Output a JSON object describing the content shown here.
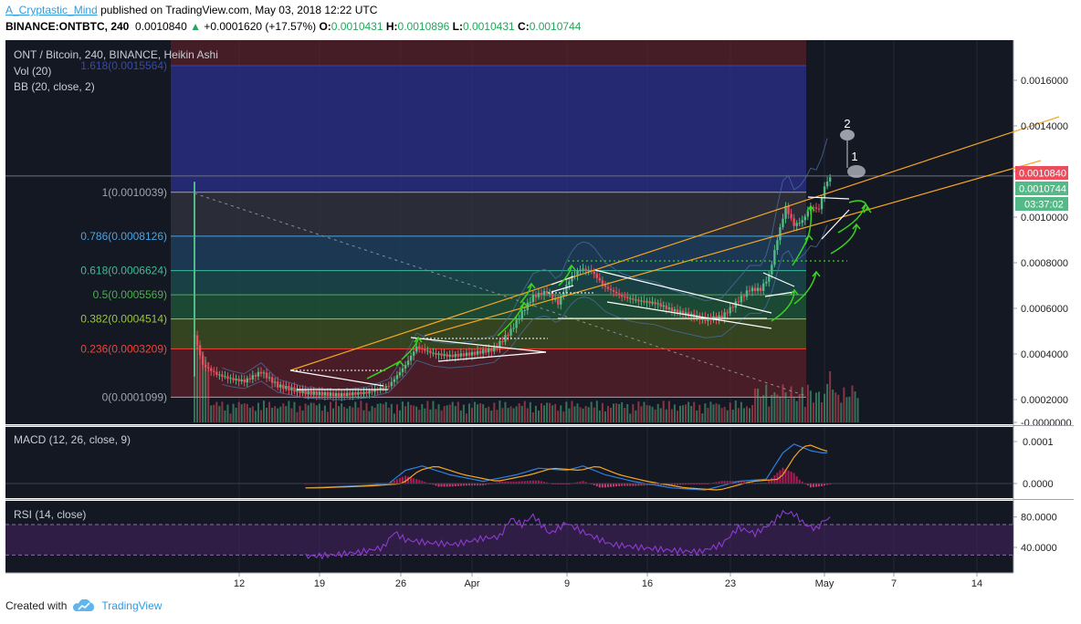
{
  "header": {
    "author": "A_Cryptastic_Mind",
    "published": "published on TradingView.com, May 03, 2018 12:22 UTC",
    "symbol_line": "BINANCE:ONTBTC, 240",
    "last": "0.0010840",
    "change": "+0.0001620 (+17.57%)",
    "o_label": "O:",
    "o": "0.0010431",
    "h_label": "H:",
    "h": "0.0010896",
    "l_label": "L:",
    "l": "0.0010431",
    "c_label": "C:",
    "c": "0.0010744"
  },
  "overlays": {
    "title": "ONT / Bitcoin, 240, BINANCE, Heikin Ashi",
    "vol": "Vol (20)",
    "bb": "BB (20, close, 2)",
    "macd": "MACD (12, 26, close, 9)",
    "rsi": "RSI (14, close)"
  },
  "price_tags": {
    "last": "0.0010840",
    "close": "0.0010744",
    "timer": "03:37:02"
  },
  "annotations": {
    "one": "1",
    "two": "2"
  },
  "footer": {
    "created": "Created with",
    "brand": "TradingView"
  },
  "colors": {
    "background": "#141823",
    "up": "#53b987",
    "down": "#eb4d5c",
    "trendline": "#f5a623",
    "pattern": "#ffffff",
    "arrow": "#3bd321",
    "macd": "#2f7fe0",
    "signal": "#f5a623",
    "rsi": "#8e3bd1"
  },
  "chart_data": {
    "type": "candlestick",
    "symbol": "ONT / Bitcoin",
    "interval": "240",
    "exchange": "BINANCE",
    "x_ticks": [
      "12",
      "19",
      "26",
      "Apr",
      "9",
      "16",
      "23",
      "May",
      "7",
      "14"
    ],
    "price_axis": {
      "ticks": [
        "0.0016000",
        "0.0014000",
        "0.0012000",
        "0.0010000",
        "0.0008000",
        "0.0006000",
        "0.0004000",
        "0.0002000",
        "-0.0000000"
      ],
      "range": [
        0.0,
        0.0016
      ]
    },
    "fib_levels": [
      {
        "label": "1.618(0.0015564)",
        "ratio": 1.618,
        "value": 0.0015564,
        "color": "#3949ab"
      },
      {
        "label": "1(0.0010039)",
        "ratio": 1,
        "value": 0.0010039,
        "color": "#9ea3ab"
      },
      {
        "label": "0.786(0.0008126)",
        "ratio": 0.786,
        "value": 0.0008126,
        "color": "#4aa3df"
      },
      {
        "label": "0.618(0.0006624)",
        "ratio": 0.618,
        "value": 0.0006624,
        "color": "#3cbc98"
      },
      {
        "label": "0.5(0.0005569)",
        "ratio": 0.5,
        "value": 0.0005569,
        "color": "#4caf50"
      },
      {
        "label": "0.382(0.0004514)",
        "ratio": 0.382,
        "value": 0.0004514,
        "color": "#9bc53d"
      },
      {
        "label": "0.236(0.0003209)",
        "ratio": 0.236,
        "value": 0.0003209,
        "color": "#f44336"
      },
      {
        "label": "0(0.0001099)",
        "ratio": 0,
        "value": 0.0001099,
        "color": "#9ea3ab"
      }
    ],
    "price_path": [
      [
        0,
        0.00038
      ],
      [
        3,
        0.00025
      ],
      [
        8,
        0.00021
      ],
      [
        13,
        0.00019
      ],
      [
        18,
        0.00018
      ],
      [
        24,
        0.00022
      ],
      [
        30,
        0.00016
      ],
      [
        40,
        0.00013
      ],
      [
        52,
        0.00012
      ],
      [
        62,
        0.00013
      ],
      [
        70,
        0.00016
      ],
      [
        76,
        0.00025
      ],
      [
        80,
        0.00033
      ],
      [
        86,
        0.0003
      ],
      [
        92,
        0.00029
      ],
      [
        100,
        0.0003
      ],
      [
        108,
        0.00032
      ],
      [
        114,
        0.0004
      ],
      [
        118,
        0.00048
      ],
      [
        122,
        0.00055
      ],
      [
        127,
        0.00057
      ],
      [
        131,
        0.00052
      ],
      [
        135,
        0.00062
      ],
      [
        139,
        0.00067
      ],
      [
        143,
        0.00066
      ],
      [
        148,
        0.00059
      ],
      [
        154,
        0.00055
      ],
      [
        160,
        0.00053
      ],
      [
        166,
        0.00052
      ],
      [
        172,
        0.00049
      ],
      [
        178,
        0.00047
      ],
      [
        184,
        0.00045
      ],
      [
        190,
        0.00046
      ],
      [
        195,
        0.00052
      ],
      [
        200,
        0.00058
      ],
      [
        204,
        0.00058
      ],
      [
        207,
        0.00064
      ],
      [
        210,
        0.0008
      ],
      [
        213,
        0.00094
      ],
      [
        216,
        0.00086
      ],
      [
        219,
        0.00088
      ],
      [
        222,
        0.00094
      ],
      [
        225,
        0.00093
      ],
      [
        227,
        0.00103
      ],
      [
        229,
        0.00107
      ]
    ],
    "macd_axis": {
      "ticks": [
        "0.0001",
        "0.0000"
      ],
      "range": [
        -2e-05,
        0.00013
      ]
    },
    "macd_path": [
      [
        40,
        -1e-05
      ],
      [
        60,
        -5e-06
      ],
      [
        70,
        0.0
      ],
      [
        76,
        3e-05
      ],
      [
        82,
        4e-05
      ],
      [
        92,
        2e-05
      ],
      [
        104,
        5e-06
      ],
      [
        116,
        2e-05
      ],
      [
        124,
        3.5e-05
      ],
      [
        134,
        3e-05
      ],
      [
        140,
        4e-05
      ],
      [
        148,
        2e-05
      ],
      [
        158,
        5e-06
      ],
      [
        172,
        -1e-05
      ],
      [
        184,
        -1.5e-05
      ],
      [
        196,
        5e-06
      ],
      [
        206,
        1e-05
      ],
      [
        212,
        7e-05
      ],
      [
        216,
        9e-05
      ],
      [
        222,
        7.5e-05
      ],
      [
        226,
        7e-05
      ],
      [
        229,
        7e-05
      ]
    ],
    "rsi_axis": {
      "ticks": [
        "80.0000",
        "40.0000"
      ],
      "range": [
        10,
        100
      ],
      "bands": [
        70,
        30
      ]
    },
    "rsi_path": [
      [
        40,
        28
      ],
      [
        50,
        30
      ],
      [
        60,
        34
      ],
      [
        68,
        40
      ],
      [
        72,
        60
      ],
      [
        76,
        50
      ],
      [
        84,
        46
      ],
      [
        94,
        44
      ],
      [
        104,
        52
      ],
      [
        110,
        54
      ],
      [
        114,
        78
      ],
      [
        118,
        70
      ],
      [
        122,
        82
      ],
      [
        128,
        58
      ],
      [
        134,
        72
      ],
      [
        140,
        60
      ],
      [
        150,
        44
      ],
      [
        160,
        40
      ],
      [
        172,
        36
      ],
      [
        182,
        34
      ],
      [
        190,
        44
      ],
      [
        196,
        66
      ],
      [
        202,
        58
      ],
      [
        208,
        72
      ],
      [
        212,
        86
      ],
      [
        216,
        84
      ],
      [
        220,
        70
      ],
      [
        224,
        64
      ],
      [
        227,
        76
      ],
      [
        229,
        78
      ]
    ]
  }
}
